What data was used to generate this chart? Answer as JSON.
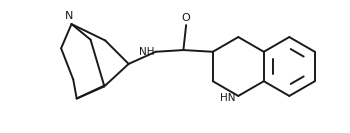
{
  "background": "#ffffff",
  "line_color": "#1a1a1a",
  "line_width": 1.4,
  "font_size": 7.5,
  "fig_width": 3.5,
  "fig_height": 1.33,
  "dpi": 100,
  "xlim": [
    0,
    10.0
  ],
  "ylim": [
    0,
    3.8
  ]
}
